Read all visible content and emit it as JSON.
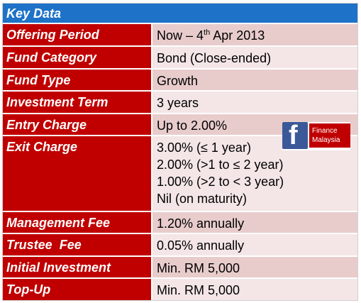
{
  "header": {
    "title": "Key Data"
  },
  "rows": [
    {
      "label": "Offering Period",
      "value_prefix": "Now – 4",
      "value_sup": "th",
      "value_suffix": " Apr 2013"
    },
    {
      "label": "Fund Category",
      "value": "Bond (Close-ended)"
    },
    {
      "label": "Fund Type",
      "value": "Growth"
    },
    {
      "label": "Investment Term",
      "value": "3 years"
    },
    {
      "label": "Entry Charge",
      "value": "Up to 2.00%"
    },
    {
      "label": "Exit Charge",
      "lines": [
        "3.00% (≤ 1 year)",
        "2.00% (>1 to ≤ 2 year)",
        "1.00% (>2 to < 3 year)",
        "Nil (on maturity)"
      ]
    },
    {
      "label": "Management Fee",
      "value": "1.20% annually"
    },
    {
      "label": "Trustee  Fee",
      "value": "0.05% annually"
    },
    {
      "label": "Initial Investment",
      "value": "Min. RM 5,000"
    },
    {
      "label": "Top-Up",
      "value": "Min. RM 5,000"
    }
  ],
  "badge": {
    "icon": "facebook-icon",
    "logo_letter": "f",
    "line1": "Finance",
    "line2": "Malaysia",
    "logo_color": "#3b5998"
  },
  "colors": {
    "header": "#1e72c8",
    "label": "#c00000",
    "value_dark": "#e8cccc",
    "value_light": "#f4e6e6"
  }
}
